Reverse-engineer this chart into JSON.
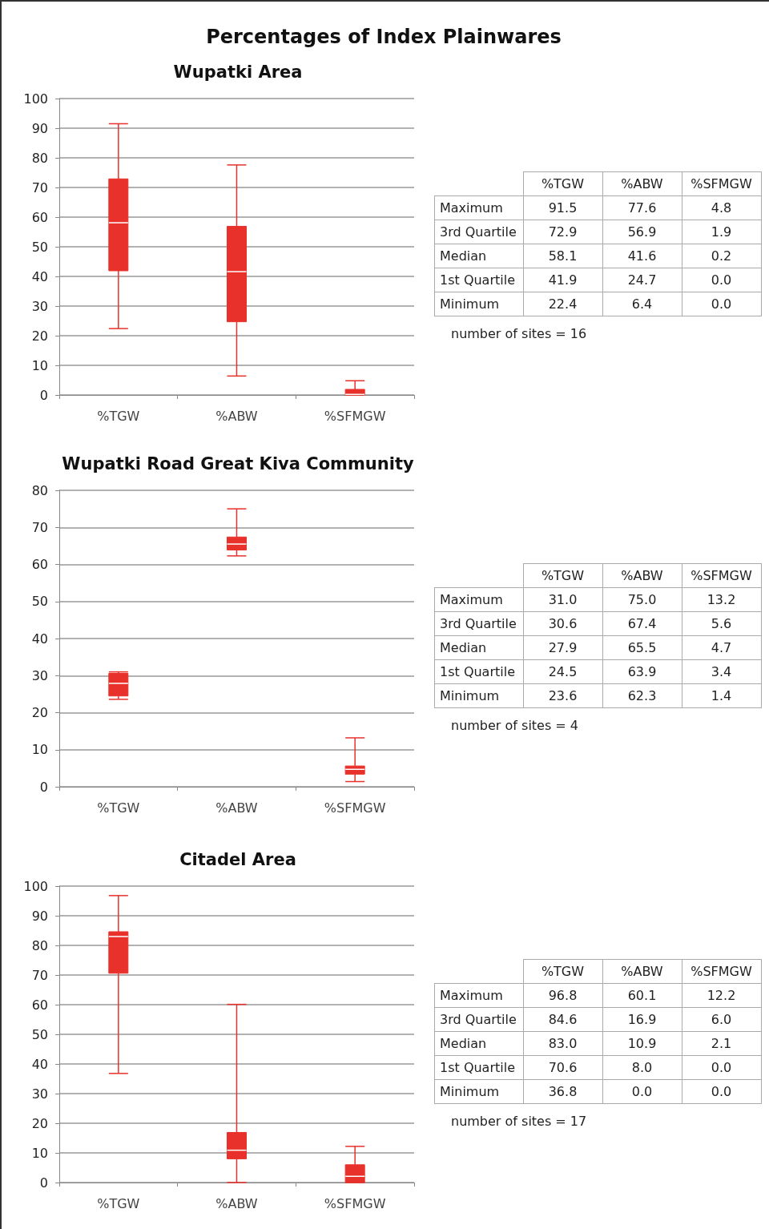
{
  "chart_data": [
    {
      "type": "box",
      "title": "Percentages of Index Plainwares",
      "subtitle": "Wupatki Area",
      "categories": [
        "%TGW",
        "%ABW",
        "%SFMGW"
      ],
      "color": "#e8312a",
      "ylim": [
        0,
        100
      ],
      "yticks": [
        0,
        10,
        20,
        30,
        40,
        50,
        60,
        70,
        80,
        90,
        100
      ],
      "grid": "y",
      "boxes": [
        {
          "low": 22.4,
          "q1": 41.9,
          "median": 58.1,
          "q3": 72.9,
          "high": 91.5
        },
        {
          "low": 6.4,
          "q1": 24.7,
          "median": 41.6,
          "q3": 56.9,
          "high": 77.6
        },
        {
          "low": 0.0,
          "q1": 0.0,
          "median": 0.2,
          "q3": 1.9,
          "high": 4.8
        }
      ],
      "value_labels": [
        [
          "91.5",
          "72.9",
          "58.1",
          "41.9",
          "22.4"
        ],
        [
          "77.6",
          "56.9",
          "41.6",
          "24.7",
          "6.4"
        ],
        [
          "4.8",
          "1.9",
          "0.2",
          "0.0",
          "0.0"
        ]
      ],
      "annotations": [
        "Maximum",
        "3rd Quartile",
        "Median",
        "1st Quartile",
        "Minimum",
        "number of sites = 16"
      ]
    },
    {
      "type": "box",
      "subtitle": "Wupatki Road Great Kiva Community",
      "categories": [
        "%TGW",
        "%ABW",
        "%SFMGW"
      ],
      "color": "#e8312a",
      "ylim": [
        0,
        80
      ],
      "yticks": [
        0,
        10,
        20,
        30,
        40,
        50,
        60,
        70,
        80
      ],
      "grid": "y",
      "boxes": [
        {
          "low": 23.6,
          "q1": 24.5,
          "median": 27.9,
          "q3": 30.6,
          "high": 31.0
        },
        {
          "low": 62.3,
          "q1": 63.9,
          "median": 65.5,
          "q3": 67.4,
          "high": 75.0
        },
        {
          "low": 1.4,
          "q1": 3.4,
          "median": 4.7,
          "q3": 5.6,
          "high": 13.2
        }
      ],
      "value_labels": [
        [
          "31.0",
          "30.6",
          "27.9",
          "24.5",
          "23.6"
        ],
        [
          "75.0",
          "67.4",
          "65.5",
          "63.9",
          "62.3"
        ],
        [
          "13.2",
          "5.6",
          "4.7",
          "3.4",
          "1.4"
        ]
      ],
      "annotations": [
        "Maximum",
        "3rd Quartile",
        "Median",
        "1st Quartile",
        "Minimum",
        "number of sites = 4"
      ]
    },
    {
      "type": "box",
      "subtitle": "Citadel Area",
      "categories": [
        "%TGW",
        "%ABW",
        "%SFMGW"
      ],
      "color": "#e8312a",
      "ylim": [
        0,
        100
      ],
      "yticks": [
        0,
        10,
        20,
        30,
        40,
        50,
        60,
        70,
        80,
        90,
        100
      ],
      "grid": "y",
      "boxes": [
        {
          "low": 36.8,
          "q1": 70.6,
          "median": 83.0,
          "q3": 84.6,
          "high": 96.8
        },
        {
          "low": 0.0,
          "q1": 8.0,
          "median": 10.9,
          "q3": 16.9,
          "high": 60.1
        },
        {
          "low": 0.0,
          "q1": 0.0,
          "median": 2.1,
          "q3": 6.0,
          "high": 12.2
        }
      ],
      "value_labels": [
        [
          "96.8",
          "84.6",
          "83.0",
          "70.6",
          "36.8"
        ],
        [
          "60.1",
          "16.9",
          "10.9",
          "8.0",
          "0.0"
        ],
        [
          "12.2",
          "6.0",
          "2.1",
          "0.0",
          "0.0"
        ]
      ],
      "annotations": [
        "Maximum",
        "3rd Quartile",
        "Median",
        "1st Quartile",
        "Minimum",
        "number of sites = 17"
      ]
    }
  ]
}
